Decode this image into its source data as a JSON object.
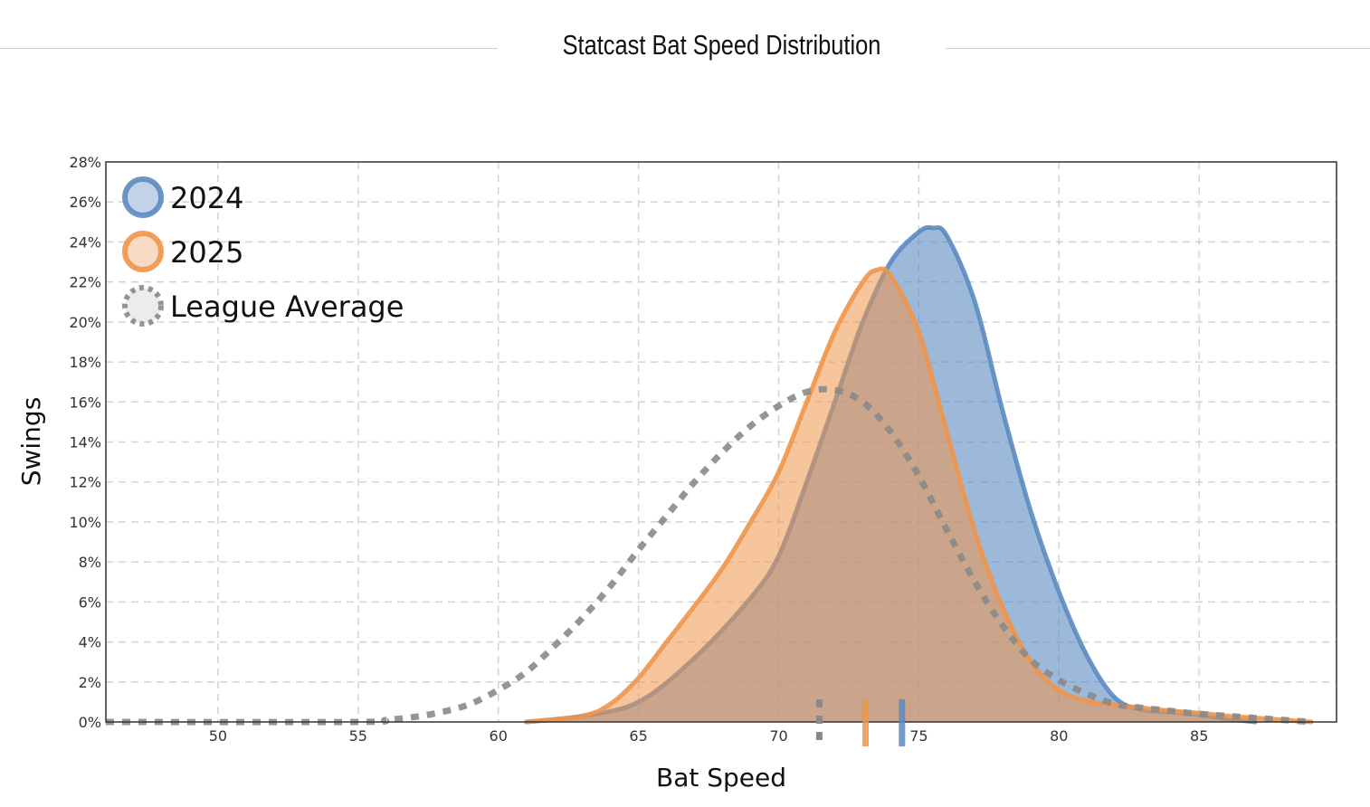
{
  "chart_data": {
    "type": "area",
    "title": "Statcast Bat Speed Distribution",
    "xlabel": "Bat Speed",
    "ylabel": "Swings",
    "xlim": [
      46,
      89.9
    ],
    "ylim": [
      0,
      28
    ],
    "xticks": [
      50,
      55,
      60,
      65,
      70,
      75,
      80,
      85
    ],
    "yticks": [
      0,
      2,
      4,
      6,
      8,
      10,
      12,
      14,
      16,
      18,
      20,
      22,
      24,
      26,
      28
    ],
    "ytick_format": "%",
    "grid": true,
    "legend_position": "top-left",
    "series": [
      {
        "name": "2024",
        "color": "#5b8bc0",
        "style": "filled",
        "x": [
          61,
          63,
          65,
          67,
          69,
          70,
          71,
          72,
          73,
          74,
          75,
          75.5,
          76,
          77,
          78,
          79,
          80,
          81,
          82,
          83,
          84,
          85,
          86,
          87
        ],
        "y": [
          0,
          0.3,
          1.0,
          3.2,
          6.2,
          8.3,
          12,
          16,
          20,
          23,
          24.5,
          24.7,
          24.3,
          21,
          15.5,
          10.5,
          6.5,
          3.3,
          1.2,
          0.6,
          0.5,
          0.35,
          0.15,
          0
        ],
        "mean": 74.4
      },
      {
        "name": "2025",
        "color": "#f0954a",
        "style": "filled",
        "x": [
          61,
          63,
          64,
          65,
          66,
          67,
          68,
          69,
          70,
          71,
          72,
          73,
          73.5,
          74,
          75,
          76,
          77,
          78,
          79,
          80,
          81,
          82,
          83,
          84,
          85,
          86,
          87,
          88,
          89
        ],
        "y": [
          0,
          0.3,
          0.9,
          2.2,
          4,
          5.8,
          7.7,
          10,
          12.5,
          16,
          19.5,
          22,
          22.6,
          22.3,
          19.5,
          14.5,
          9.5,
          5.7,
          3,
          1.6,
          1.05,
          0.85,
          0.7,
          0.55,
          0.45,
          0.3,
          0.2,
          0.1,
          0
        ],
        "mean": 73.1
      },
      {
        "name": "League Average",
        "color": "#8a8a8a",
        "style": "dotted",
        "x": [
          46,
          55,
          56,
          57,
          58,
          59,
          60,
          61,
          62,
          63,
          64,
          65,
          66,
          67,
          68,
          69,
          70,
          71,
          72,
          73,
          74,
          75,
          76,
          77,
          78,
          79,
          80,
          81,
          82,
          83,
          84,
          85,
          86,
          87,
          88,
          89
        ],
        "y": [
          0,
          0,
          0.1,
          0.25,
          0.5,
          0.9,
          1.6,
          2.5,
          3.8,
          5.2,
          6.8,
          8.6,
          10.3,
          12,
          13.5,
          14.8,
          15.8,
          16.5,
          16.6,
          16,
          14.5,
          12.3,
          9.6,
          7,
          4.8,
          3.1,
          2.1,
          1.4,
          0.9,
          0.7,
          0.55,
          0.4,
          0.3,
          0.2,
          0.1,
          0
        ],
        "mean": 71.45
      }
    ]
  }
}
